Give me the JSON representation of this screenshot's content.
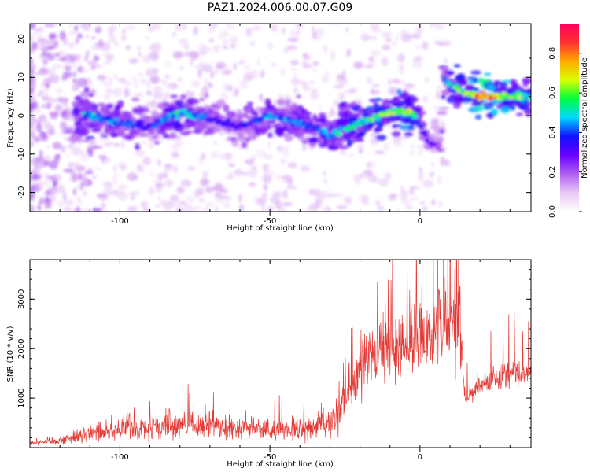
{
  "title": "PAZ1.2024.006.00.07.G09",
  "chart_data": [
    {
      "type": "heatmap",
      "xlabel": "Height of straight line (km)",
      "ylabel": "Frequency (Hz)",
      "xlim": [
        -130,
        37
      ],
      "ylim": [
        -25,
        24
      ],
      "xticks": [
        -100,
        -50,
        0
      ],
      "yticks": [
        -20,
        -10,
        0,
        10,
        20
      ],
      "colorbar": {
        "label": "Normalized spectral amplitude",
        "range": [
          0.0,
          0.95
        ],
        "ticks": [
          0.0,
          0.2,
          0.4,
          0.6,
          0.8
        ],
        "colors": [
          "#ffffff",
          "#e8c8f5",
          "#b060f0",
          "#6a00ff",
          "#1010ff",
          "#00d8ff",
          "#00ff40",
          "#d8ff00",
          "#ffaa00",
          "#ff3030",
          "#ff0060"
        ]
      },
      "ridge": {
        "height_km": [
          -110,
          -100,
          -90,
          -80,
          -70,
          -60,
          -50,
          -40,
          -30,
          -20,
          -10,
          -3,
          0,
          3,
          7,
          8,
          10,
          15,
          20,
          25,
          30,
          37
        ],
        "frequency_hz": [
          0,
          -2,
          -3,
          1,
          -1,
          -3,
          0,
          -2,
          -5,
          -2,
          1,
          1,
          -2,
          -7,
          -8,
          10,
          8,
          6,
          5,
          5,
          5,
          5
        ],
        "amplitude": [
          0.5,
          0.45,
          0.4,
          0.55,
          0.4,
          0.35,
          0.5,
          0.45,
          0.5,
          0.6,
          0.65,
          0.7,
          0.4,
          0.3,
          0.25,
          0.4,
          0.6,
          0.7,
          0.9,
          0.85,
          0.7,
          0.6
        ]
      }
    },
    {
      "type": "line",
      "xlabel": "Height of straight line (km)",
      "ylabel": "SNR (10 * v/v)",
      "xlim": [
        -130,
        37
      ],
      "ylim": [
        0,
        3800
      ],
      "xticks": [
        -100,
        -50,
        0
      ],
      "yticks": [
        1000,
        2000,
        3000
      ],
      "color": "#e53935",
      "series": [
        {
          "x": [
            -130,
            -120,
            -110,
            -100,
            -90,
            -80,
            -70,
            -60,
            -50,
            -40,
            -30,
            -25,
            -20,
            -15,
            -10,
            -5,
            0,
            5,
            10,
            13,
            15,
            20,
            25,
            30,
            37
          ],
          "y": [
            100,
            150,
            300,
            350,
            400,
            450,
            450,
            400,
            350,
            350,
            500,
            1000,
            1700,
            1800,
            2000,
            2100,
            2200,
            2400,
            2600,
            2700,
            1000,
            1300,
            1400,
            1500,
            1500
          ]
        }
      ]
    }
  ]
}
